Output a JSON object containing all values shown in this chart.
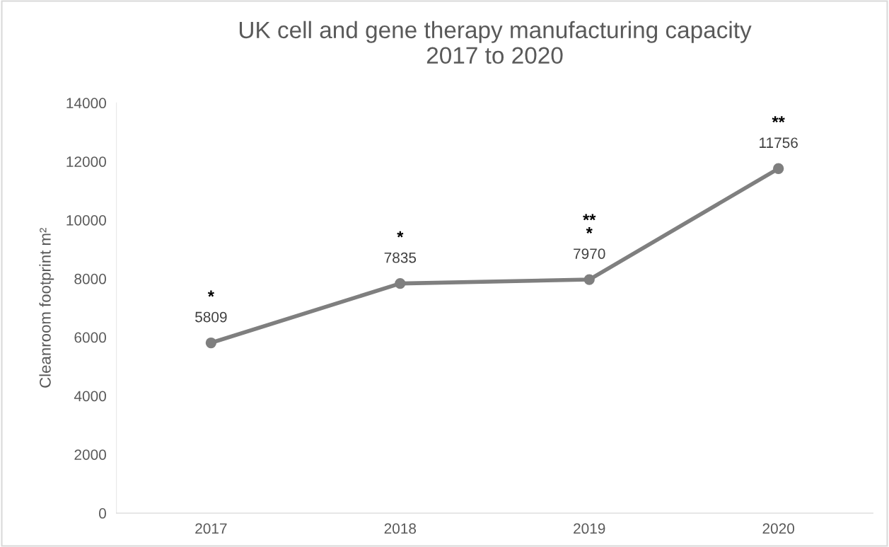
{
  "chart_data": {
    "type": "line",
    "title": "UK cell and gene therapy manufacturing capacity\n2017 to 2020",
    "ylabel": "Cleanroom footprint m²",
    "categories": [
      "2017",
      "2018",
      "2019",
      "2020"
    ],
    "series": [
      {
        "color": "#7f7f7f",
        "values": [
          5809,
          7835,
          7970,
          11756
        ]
      }
    ],
    "ylim": [
      0,
      14000
    ],
    "yticks": [
      0,
      2000,
      4000,
      6000,
      8000,
      10000,
      12000,
      14000
    ],
    "marker": "circle",
    "line_style": "solid",
    "data_labels": true,
    "grid": false,
    "annotations": [
      {
        "text": "*",
        "x": "2017",
        "y": 5809
      },
      {
        "text": "*",
        "x": "2018",
        "y": 7835
      },
      {
        "text": "**\n*",
        "x": "2019",
        "y": 7970
      },
      {
        "text": "**",
        "x": "2020",
        "y": 11756
      }
    ]
  }
}
